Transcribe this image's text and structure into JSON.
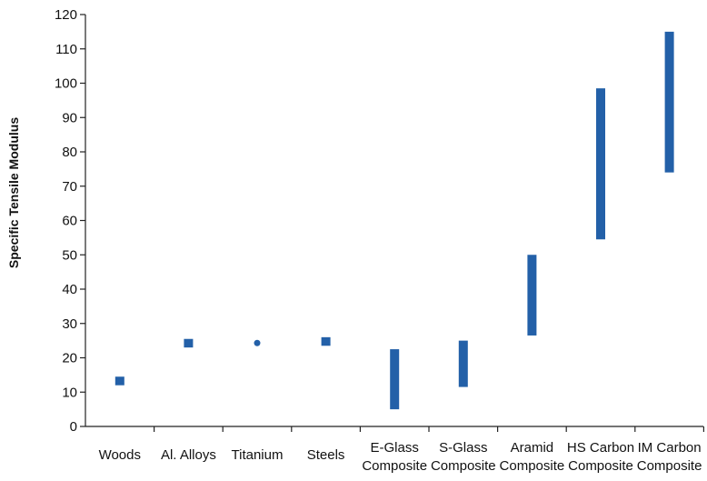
{
  "chart_data": {
    "type": "range-bar",
    "ylabel": "Specific Tensile Modulus",
    "xlabel": "",
    "ylim": [
      0,
      120
    ],
    "yticks": [
      0,
      10,
      20,
      30,
      40,
      50,
      60,
      70,
      80,
      90,
      100,
      110,
      120
    ],
    "grid": false,
    "bar_color": "#2360a8",
    "categories": [
      [
        "Woods"
      ],
      [
        "Al. Alloys"
      ],
      [
        "Titanium"
      ],
      [
        "Steels"
      ],
      [
        "E-Glass",
        "Composite"
      ],
      [
        "S-Glass",
        "Composite"
      ],
      [
        "Aramid",
        "Composite"
      ],
      [
        "HS Carbon",
        "Composite"
      ],
      [
        "IM Carbon",
        "Composite"
      ]
    ],
    "ranges": [
      {
        "low": 12,
        "high": 14.5,
        "marker": "square"
      },
      {
        "low": 23,
        "high": 25.5,
        "marker": "square"
      },
      {
        "low": 24.3,
        "high": 24.3,
        "marker": "dot"
      },
      {
        "low": 23.5,
        "high": 26,
        "marker": "square"
      },
      {
        "low": 5,
        "high": 22.5,
        "marker": "bar"
      },
      {
        "low": 11.5,
        "high": 25,
        "marker": "bar"
      },
      {
        "low": 26.5,
        "high": 50,
        "marker": "bar"
      },
      {
        "low": 54.5,
        "high": 98.5,
        "marker": "bar"
      },
      {
        "low": 74,
        "high": 115,
        "marker": "bar"
      }
    ]
  }
}
